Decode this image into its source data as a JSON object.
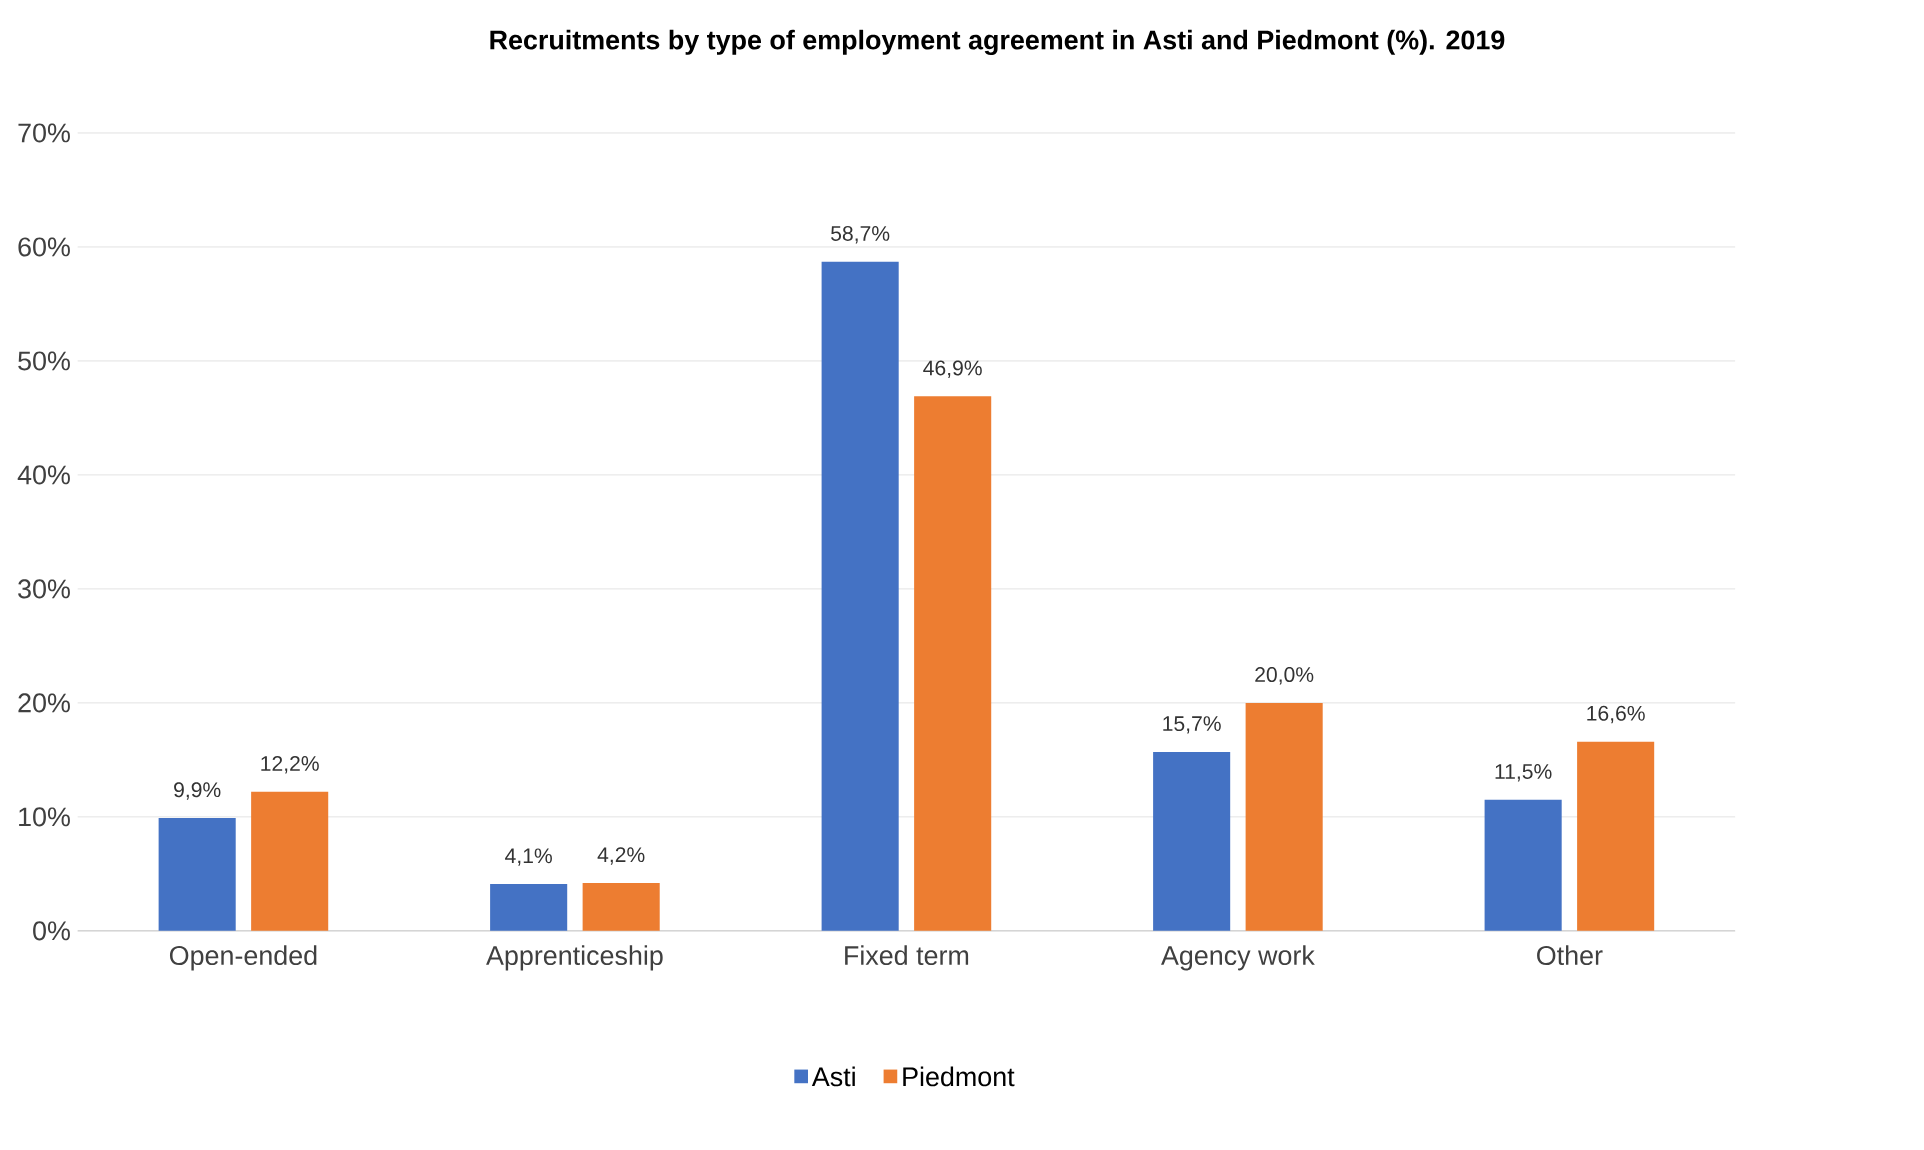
{
  "chart_data": {
    "type": "bar",
    "title": "Recruitments by type of employment agreement in Asti and Piedmont (%). 2019",
    "categories": [
      "Open-ended",
      "Apprenticeship",
      "Fixed term",
      "Agency work",
      "Other"
    ],
    "series": [
      {
        "name": "Asti",
        "color": "#4472c4",
        "values": [
          9.9,
          4.1,
          58.7,
          15.7,
          11.5
        ],
        "value_labels": [
          "9,9%",
          "4,1%",
          "58,7%",
          "15,7%",
          "11,5%"
        ]
      },
      {
        "name": "Piedmont",
        "color": "#ed7d31",
        "values": [
          12.2,
          4.2,
          46.9,
          20.0,
          16.6
        ],
        "value_labels": [
          "12,2%",
          "4,2%",
          "46,9%",
          "20,0%",
          "16,6%"
        ]
      }
    ],
    "ylim": [
      0,
      70
    ],
    "yticks": [
      {
        "value": 0,
        "label": "0%"
      },
      {
        "value": 10,
        "label": "10%"
      },
      {
        "value": 20,
        "label": "20%"
      },
      {
        "value": 30,
        "label": "30%"
      },
      {
        "value": 40,
        "label": "40%"
      },
      {
        "value": 50,
        "label": "50%"
      },
      {
        "value": 60,
        "label": "60%"
      },
      {
        "value": 70,
        "label": "70%"
      }
    ],
    "grid": "y",
    "legend": "bottom"
  }
}
